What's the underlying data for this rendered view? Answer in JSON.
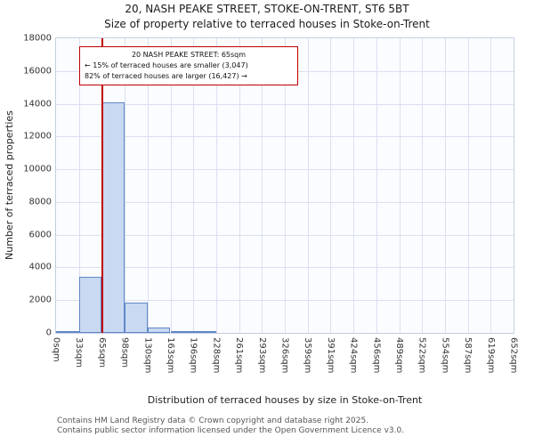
{
  "title": "20, NASH PEAKE STREET, STOKE-ON-TRENT, ST6 5BT",
  "subtitle": "Size of property relative to terraced houses in Stoke-on-Trent",
  "annotation": {
    "line1": "20 NASH PEAKE STREET: 65sqm",
    "line2": "← 15% of terraced houses are smaller (3,047)",
    "line3": "82% of terraced houses are larger (16,427) →"
  },
  "chart_data": {
    "type": "bar",
    "title": "20, NASH PEAKE STREET, STOKE-ON-TRENT, ST6 5BT",
    "subtitle": "Size of property relative to terraced houses in Stoke-on-Trent",
    "xlabel": "Distribution of terraced houses by size in Stoke-on-Trent",
    "ylabel": "Number of terraced properties",
    "categories": [
      "0sqm",
      "33sqm",
      "65sqm",
      "98sqm",
      "130sqm",
      "163sqm",
      "196sqm",
      "228sqm",
      "261sqm",
      "293sqm",
      "326sqm",
      "359sqm",
      "391sqm",
      "424sqm",
      "456sqm",
      "489sqm",
      "522sqm",
      "554sqm",
      "587sqm",
      "619sqm",
      "652sqm"
    ],
    "values": [
      100,
      3400,
      14100,
      1850,
      350,
      120,
      60,
      0,
      0,
      0,
      0,
      0,
      0,
      0,
      0,
      0,
      0,
      0,
      0,
      0
    ],
    "ylim": [
      0,
      18000
    ],
    "ytick_step": 2000,
    "xmax_sqm": 652,
    "marker_value_sqm": 65,
    "marker_color": "#c00000",
    "bar_fill": "#c9d9f1",
    "bar_border": "#5f87c7",
    "grid": true,
    "legend": "none"
  },
  "footer": {
    "line1": "Contains HM Land Registry data © Crown copyright and database right 2025.",
    "line2": "Contains public sector information licensed under the Open Government Licence v3.0."
  }
}
